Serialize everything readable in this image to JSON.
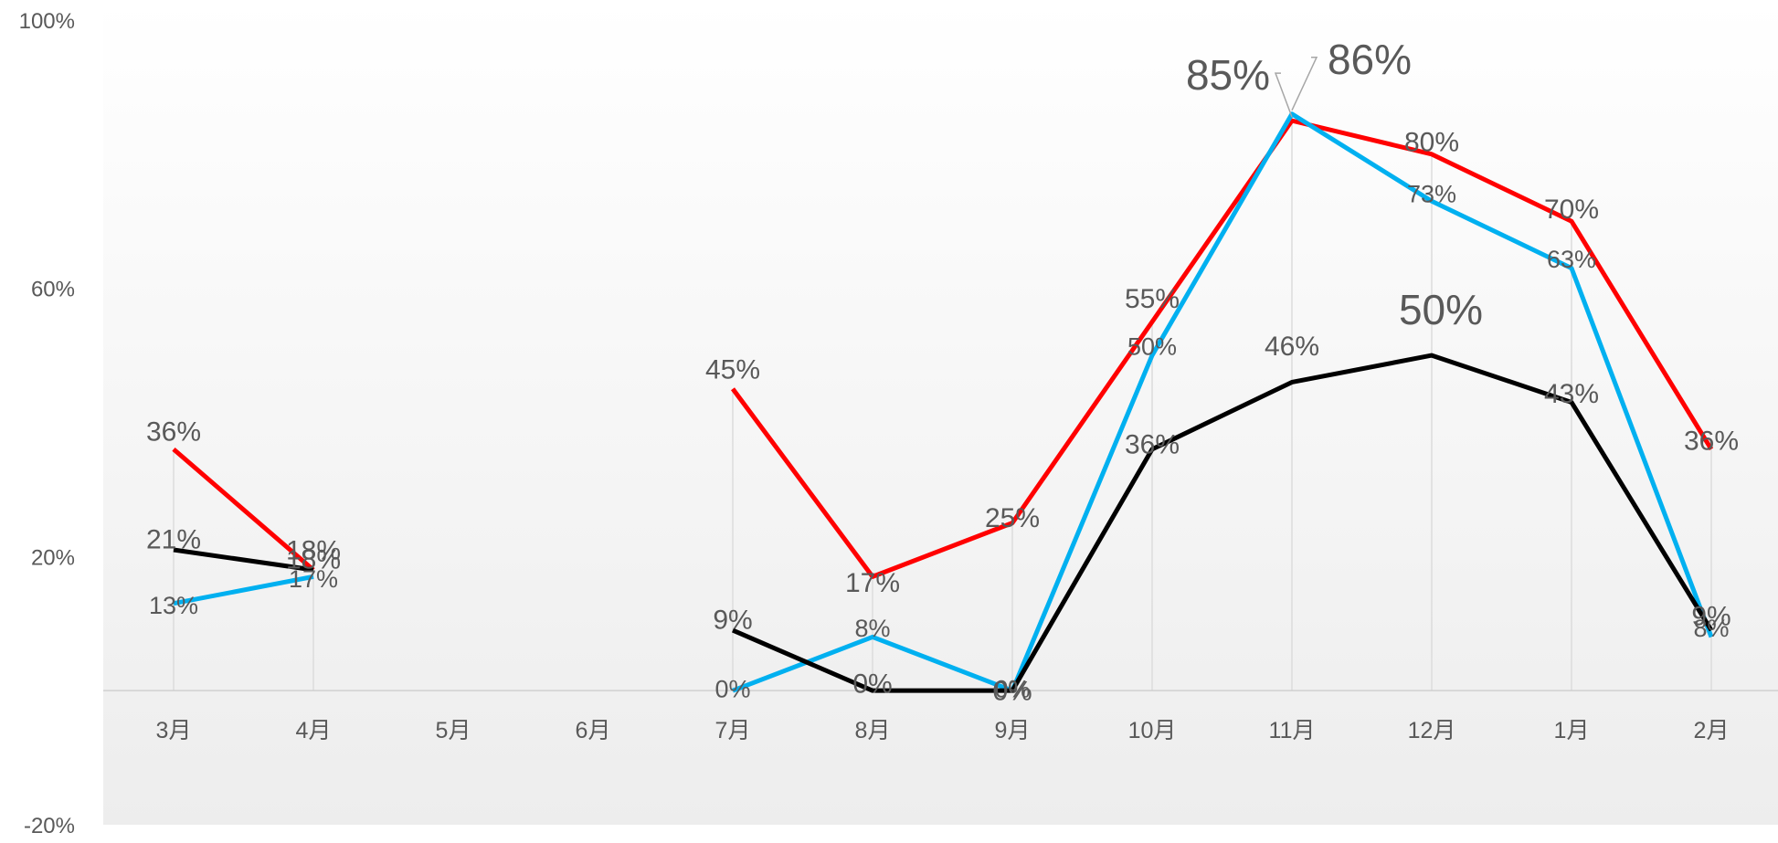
{
  "chart_data": {
    "type": "line",
    "categories": [
      "3月",
      "4月",
      "5月",
      "6月",
      "7月",
      "8月",
      "9月",
      "10月",
      "11月",
      "12月",
      "1月",
      "2月"
    ],
    "ylim": [
      -0.2,
      1.0
    ],
    "yticks": [
      -0.2,
      0.2,
      0.6,
      1.0
    ],
    "ytick_labels": [
      "-20%",
      "20%",
      "60%",
      "100%"
    ],
    "grid": "vertical drop lines at each category",
    "legend": "none",
    "series": [
      {
        "color": "#FF0000",
        "values": [
          0.36,
          0.18,
          null,
          null,
          0.45,
          0.17,
          0.25,
          0.55,
          0.85,
          0.8,
          0.7,
          0.36
        ],
        "labels": [
          "36%",
          "18%",
          "",
          "",
          "45%",
          "17%",
          "25%",
          "55%",
          "85%",
          "80%",
          "70%",
          "36%"
        ]
      },
      {
        "color": "#00B0F0",
        "values": [
          0.13,
          0.17,
          null,
          null,
          0.0,
          0.08,
          0.0,
          0.5,
          0.86,
          0.73,
          0.63,
          0.08
        ],
        "labels": [
          "13%",
          "17%",
          "",
          "",
          "0%",
          "8%",
          "0%",
          "50%",
          "86%",
          "73%",
          "63%",
          "8%"
        ]
      },
      {
        "color": "#000000",
        "values": [
          0.21,
          0.18,
          null,
          null,
          0.09,
          0.0,
          0.0,
          0.36,
          0.46,
          0.5,
          0.43,
          0.09
        ],
        "labels": [
          "21%",
          "18%",
          "",
          "",
          "9%",
          "0%",
          "0%",
          "36%",
          "46%",
          "50%",
          "43%",
          "9%"
        ]
      }
    ]
  }
}
